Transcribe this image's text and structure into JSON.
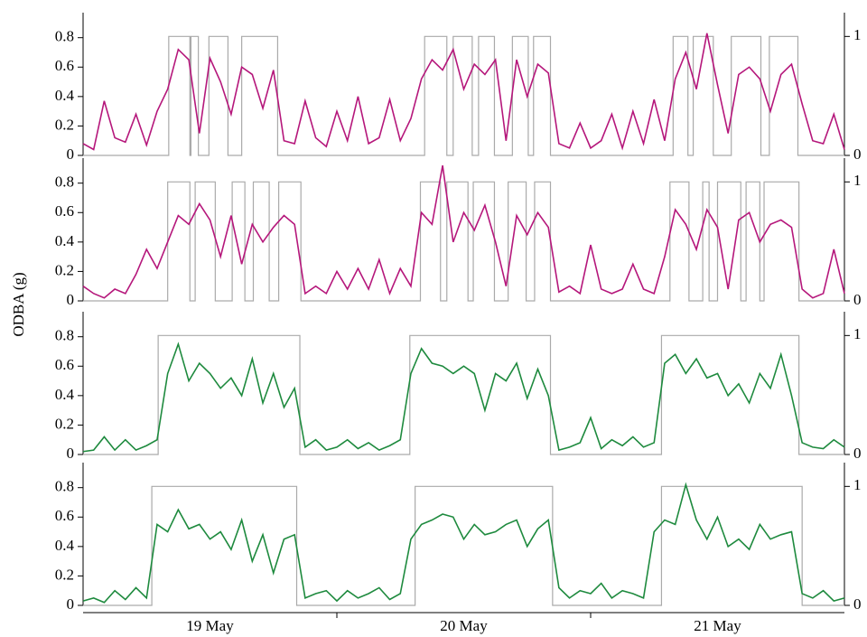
{
  "chart_data": {
    "type": "line",
    "ylabel": "ODBA (g)",
    "xlim": [
      0,
      72
    ],
    "xticks": [
      {
        "value": 12,
        "label": "19 May"
      },
      {
        "value": 36,
        "label": "20 May"
      },
      {
        "value": 60,
        "label": "21 May"
      }
    ],
    "minor_xticks": [
      24,
      48
    ],
    "x": [
      0,
      1,
      2,
      3,
      4,
      5,
      6,
      7,
      8,
      9,
      10,
      11,
      12,
      13,
      14,
      15,
      16,
      17,
      18,
      19,
      20,
      21,
      22,
      23,
      24,
      25,
      26,
      27,
      28,
      29,
      30,
      31,
      32,
      33,
      34,
      35,
      36,
      37,
      38,
      39,
      40,
      41,
      42,
      43,
      44,
      45,
      46,
      47,
      48,
      49,
      50,
      51,
      52,
      53,
      54,
      55,
      56,
      57,
      58,
      59,
      60,
      61,
      62,
      63,
      64,
      65,
      66,
      67,
      68,
      69,
      70,
      71,
      72
    ],
    "panels": [
      {
        "ylim": [
          0,
          0.97
        ],
        "yticks": [
          0,
          0.2,
          0.4,
          0.6,
          0.8
        ],
        "y2lim": [
          0,
          1.2
        ],
        "y2ticks": [
          0,
          1
        ],
        "series": [
          {
            "color": "#b5177b",
            "values": [
              0.08,
              0.04,
              0.37,
              0.12,
              0.09,
              0.28,
              0.07,
              0.3,
              0.45,
              0.72,
              0.65,
              0.15,
              0.66,
              0.5,
              0.28,
              0.6,
              0.55,
              0.32,
              0.58,
              0.1,
              0.08,
              0.37,
              0.12,
              0.06,
              0.3,
              0.1,
              0.4,
              0.08,
              0.12,
              0.38,
              0.1,
              0.25,
              0.52,
              0.65,
              0.58,
              0.72,
              0.45,
              0.62,
              0.55,
              0.65,
              0.1,
              0.65,
              0.4,
              0.62,
              0.56,
              0.08,
              0.05,
              0.22,
              0.05,
              0.1,
              0.28,
              0.05,
              0.3,
              0.08,
              0.38,
              0.1,
              0.52,
              0.7,
              0.45,
              0.83,
              0.48,
              0.15,
              0.55,
              0.6,
              0.52,
              0.3,
              0.55,
              0.62,
              0.35,
              0.1,
              0.08,
              0.28,
              0.04
            ]
          },
          {
            "color": "#aaaaaa",
            "axis": "y2",
            "step": true,
            "x": [
              0,
              8.1,
              10.1,
              10.2,
              10.9,
              11.9,
              13.7,
              15.0,
              18.4,
              32.3,
              34.4,
              35.0,
              36.8,
              37.4,
              38.9,
              40.6,
              42.1,
              42.6,
              44.2,
              55.8,
              57.2,
              57.7,
              59.6,
              61.3,
              64.1,
              64.9,
              67.6,
              72
            ],
            "values": [
              0,
              1,
              0,
              1,
              0,
              1,
              0,
              1,
              0,
              1,
              0,
              1,
              0,
              1,
              0,
              1,
              0,
              1,
              0,
              1,
              0,
              1,
              0,
              1,
              0,
              1,
              0,
              0
            ]
          }
        ]
      },
      {
        "ylim": [
          0,
          0.97
        ],
        "yticks": [
          0,
          0.2,
          0.4,
          0.6,
          0.8
        ],
        "y2lim": [
          0,
          1.2
        ],
        "y2ticks": [
          0,
          1
        ],
        "series": [
          {
            "color": "#b5177b",
            "values": [
              0.1,
              0.05,
              0.02,
              0.08,
              0.05,
              0.18,
              0.35,
              0.22,
              0.4,
              0.58,
              0.52,
              0.66,
              0.55,
              0.3,
              0.58,
              0.25,
              0.52,
              0.4,
              0.5,
              0.58,
              0.52,
              0.05,
              0.1,
              0.05,
              0.2,
              0.08,
              0.22,
              0.08,
              0.28,
              0.05,
              0.22,
              0.1,
              0.6,
              0.52,
              0.92,
              0.4,
              0.6,
              0.48,
              0.65,
              0.4,
              0.1,
              0.58,
              0.45,
              0.6,
              0.5,
              0.06,
              0.1,
              0.05,
              0.38,
              0.08,
              0.05,
              0.08,
              0.25,
              0.08,
              0.05,
              0.3,
              0.62,
              0.52,
              0.35,
              0.62,
              0.5,
              0.08,
              0.55,
              0.6,
              0.4,
              0.52,
              0.55,
              0.5,
              0.08,
              0.02,
              0.05,
              0.35,
              0.05
            ]
          },
          {
            "color": "#aaaaaa",
            "axis": "y2",
            "step": true,
            "x": [
              0,
              8.0,
              10.1,
              10.6,
              12.5,
              14.1,
              15.3,
              16.1,
              17.6,
              18.5,
              20.6,
              31.9,
              33.8,
              34.4,
              36.4,
              36.9,
              38.9,
              40.2,
              41.9,
              42.7,
              44.2,
              55.5,
              57.3,
              58.6,
              59.2,
              60.0,
              62.2,
              62.7,
              64.0,
              64.4,
              67.7,
              72
            ],
            "values": [
              0,
              1,
              0,
              1,
              0,
              1,
              0,
              1,
              0,
              1,
              0,
              1,
              0,
              1,
              0,
              1,
              0,
              1,
              0,
              1,
              0,
              1,
              0,
              1,
              0,
              1,
              0,
              1,
              0,
              1,
              0,
              0
            ]
          }
        ]
      },
      {
        "ylim": [
          0,
          0.97
        ],
        "yticks": [
          0,
          0.2,
          0.4,
          0.6,
          0.8
        ],
        "y2lim": [
          0,
          1.2
        ],
        "y2ticks": [
          0,
          1
        ],
        "series": [
          {
            "color": "#1e8a3e",
            "values": [
              0.02,
              0.03,
              0.12,
              0.03,
              0.1,
              0.03,
              0.06,
              0.1,
              0.55,
              0.75,
              0.5,
              0.62,
              0.55,
              0.45,
              0.52,
              0.4,
              0.65,
              0.35,
              0.55,
              0.32,
              0.45,
              0.05,
              0.1,
              0.03,
              0.05,
              0.1,
              0.04,
              0.08,
              0.03,
              0.06,
              0.1,
              0.55,
              0.72,
              0.62,
              0.6,
              0.55,
              0.6,
              0.55,
              0.3,
              0.55,
              0.5,
              0.62,
              0.38,
              0.58,
              0.4,
              0.03,
              0.05,
              0.08,
              0.25,
              0.04,
              0.1,
              0.06,
              0.12,
              0.05,
              0.08,
              0.62,
              0.68,
              0.55,
              0.65,
              0.52,
              0.55,
              0.4,
              0.48,
              0.35,
              0.55,
              0.45,
              0.68,
              0.4,
              0.08,
              0.05,
              0.04,
              0.1,
              0.05
            ]
          },
          {
            "color": "#aaaaaa",
            "axis": "y2",
            "step": true,
            "x": [
              0,
              7.1,
              20.5,
              30.9,
              44.2,
              54.7,
              67.7,
              72
            ],
            "values": [
              0,
              1,
              0,
              1,
              0,
              1,
              0,
              0
            ]
          }
        ]
      },
      {
        "ylim": [
          0,
          0.97
        ],
        "yticks": [
          0,
          0.2,
          0.4,
          0.6,
          0.8
        ],
        "y2lim": [
          0,
          1.2
        ],
        "y2ticks": [
          0,
          1
        ],
        "series": [
          {
            "color": "#1e8a3e",
            "values": [
              0.03,
              0.05,
              0.02,
              0.1,
              0.04,
              0.12,
              0.05,
              0.55,
              0.5,
              0.65,
              0.52,
              0.55,
              0.45,
              0.5,
              0.38,
              0.58,
              0.3,
              0.48,
              0.22,
              0.45,
              0.48,
              0.05,
              0.08,
              0.1,
              0.03,
              0.1,
              0.05,
              0.08,
              0.12,
              0.04,
              0.08,
              0.45,
              0.55,
              0.58,
              0.62,
              0.6,
              0.45,
              0.55,
              0.48,
              0.5,
              0.55,
              0.58,
              0.4,
              0.52,
              0.58,
              0.12,
              0.05,
              0.1,
              0.08,
              0.15,
              0.05,
              0.1,
              0.08,
              0.05,
              0.5,
              0.58,
              0.55,
              0.82,
              0.58,
              0.45,
              0.6,
              0.4,
              0.45,
              0.38,
              0.55,
              0.45,
              0.48,
              0.5,
              0.08,
              0.05,
              0.1,
              0.03,
              0.05
            ]
          },
          {
            "color": "#aaaaaa",
            "axis": "y2",
            "step": true,
            "x": [
              0,
              6.5,
              20.2,
              31.4,
              44.4,
              54.7,
              68.0,
              72
            ],
            "values": [
              0,
              1,
              0,
              1,
              0,
              1,
              0,
              0
            ]
          }
        ]
      }
    ]
  }
}
